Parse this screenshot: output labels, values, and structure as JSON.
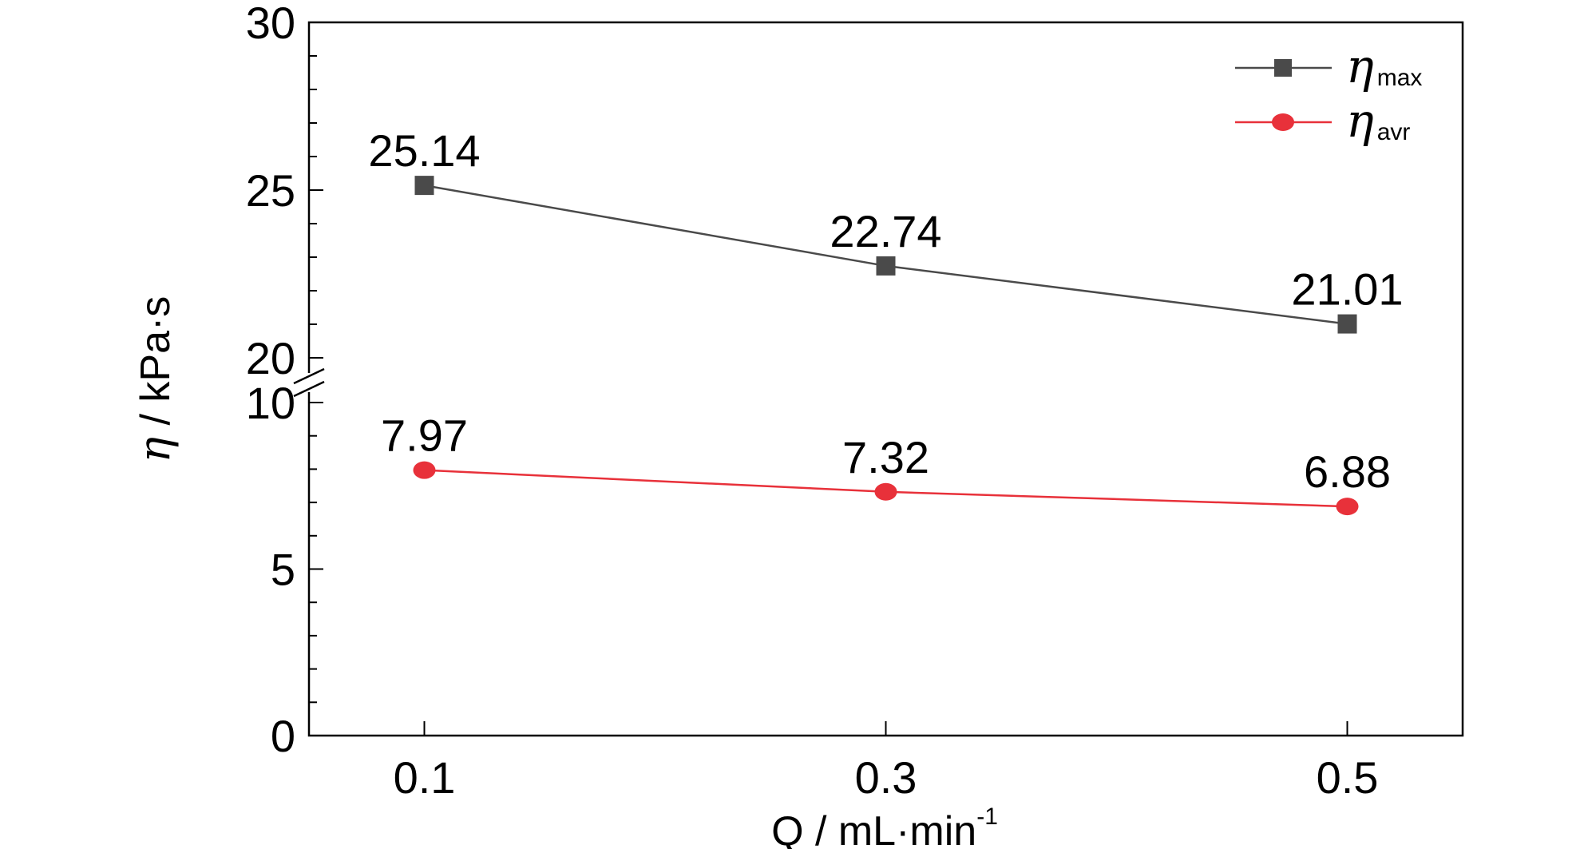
{
  "chart_data": {
    "type": "line",
    "xlabel_main": "Q / mL·min",
    "xlabel_sup": "-1",
    "ylabel_symbol": "η",
    "ylabel_unit": " / kPa·s",
    "x": [
      0.1,
      0.3,
      0.5
    ],
    "x_tick_labels": [
      "0.1",
      "0.3",
      "0.5"
    ],
    "y_ticks_lower": [
      "0",
      "5",
      "10"
    ],
    "y_ticks_upper": [
      "20",
      "25",
      "30"
    ],
    "ylim_lower": [
      0,
      10
    ],
    "ylim_upper": [
      20,
      30
    ],
    "axis_break": true,
    "legend_position": "top-right",
    "series": [
      {
        "key": "max",
        "name_symbol": "η",
        "name_sub": "max",
        "values": [
          25.14,
          22.74,
          21.01
        ],
        "labels": [
          "25.14",
          "22.74",
          "21.01"
        ],
        "segment": "upper",
        "marker": "square",
        "color": "#4a4a4a"
      },
      {
        "key": "avr",
        "name_symbol": "η",
        "name_sub": "avr",
        "values": [
          7.97,
          7.32,
          6.88
        ],
        "labels": [
          "7.97",
          "7.32",
          "6.88"
        ],
        "segment": "lower",
        "marker": "circle",
        "color": "#e8313a"
      }
    ]
  }
}
